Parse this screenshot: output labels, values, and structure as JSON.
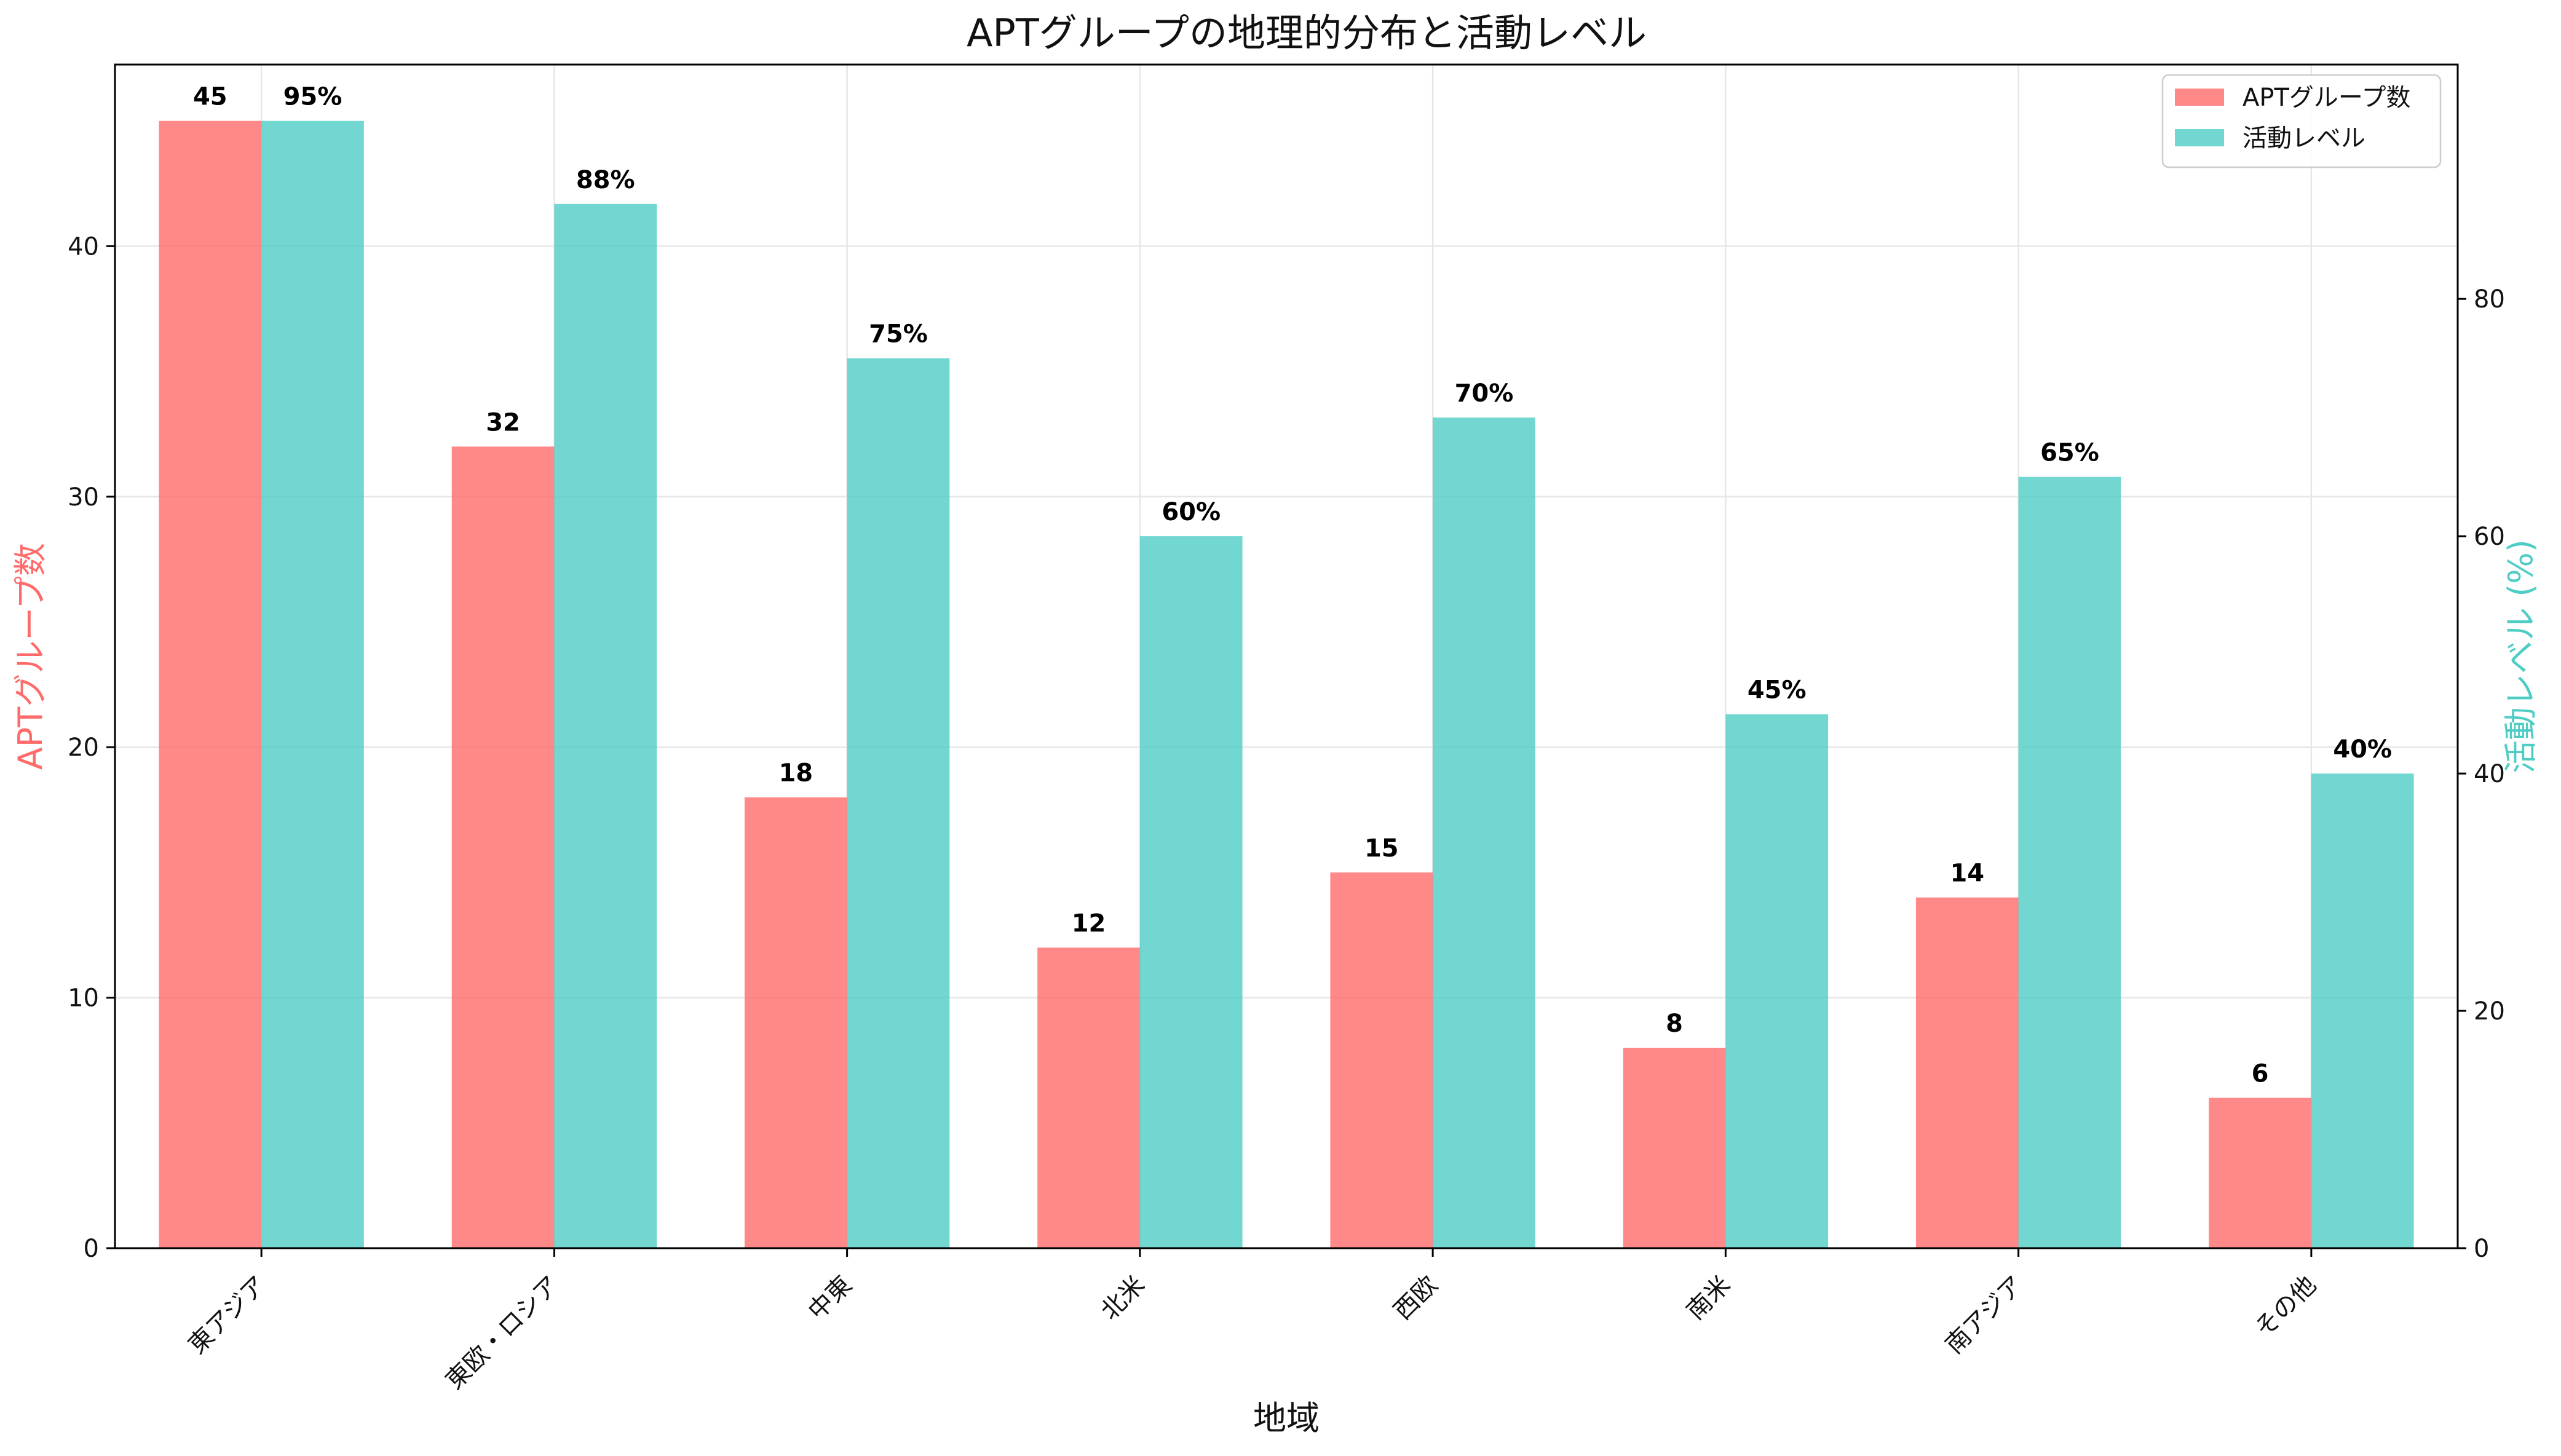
{
  "chart_data": {
    "type": "bar",
    "title": "APTグループの地理的分布と活動レベル",
    "xlabel": "地域",
    "ylabel_left": "APTグループ数",
    "ylabel_right": "活動レベル (%)",
    "categories": [
      "東アジア",
      "東欧・ロシア",
      "中東",
      "北米",
      "西欧",
      "南米",
      "南アジア",
      "その他"
    ],
    "series": [
      {
        "name": "APTグループ数",
        "axis": "left",
        "values": [
          45,
          32,
          18,
          12,
          15,
          8,
          14,
          6
        ],
        "value_labels": [
          "45",
          "32",
          "18",
          "12",
          "15",
          "8",
          "14",
          "6"
        ],
        "color": "#ff6b6b"
      },
      {
        "name": "活動レベル",
        "axis": "right",
        "values": [
          95,
          88,
          75,
          60,
          70,
          45,
          65,
          40
        ],
        "value_labels": [
          "95%",
          "88%",
          "75%",
          "60%",
          "70%",
          "45%",
          "65%",
          "40%"
        ],
        "color": "#4ecdc4"
      }
    ],
    "ylim_left": [
      0,
      47.25
    ],
    "ylim_right": [
      0,
      99.75
    ],
    "yticks_left": [
      0,
      10,
      20,
      30,
      40
    ],
    "yticks_right": [
      0,
      20,
      40,
      60,
      80
    ],
    "left_axis_color": "#ff6b6b",
    "right_axis_color": "#4ecdc4",
    "bar_opacity": 0.8,
    "grid": true,
    "legend_position": "top-right"
  }
}
